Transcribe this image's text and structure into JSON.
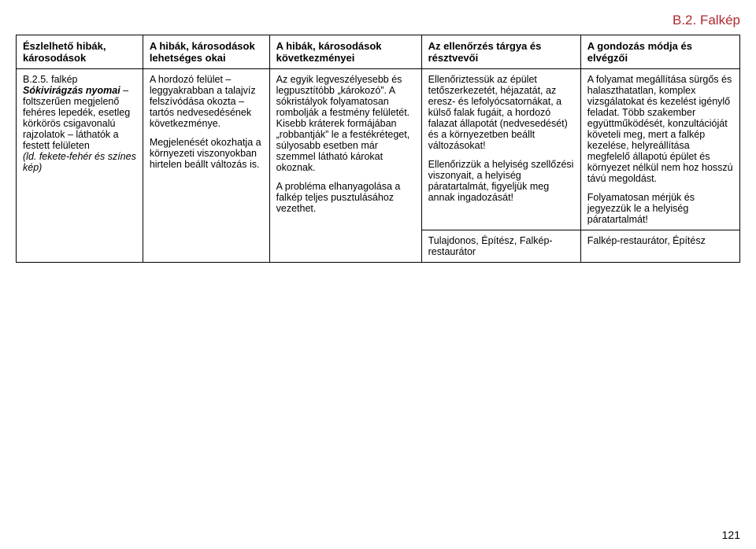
{
  "section_title": "B.2. Falkép",
  "page_number": "121",
  "headers": {
    "c1": "Észlelhető hibák, károsodások",
    "c2": "A hibák, károsodások lehetséges okai",
    "c3": "A hibák, károsodások következményei",
    "c4": "Az ellenőrzés tárgya és résztvevői",
    "c5": "A gondozás módja és elvégzői"
  },
  "row1": {
    "c1": {
      "code": "B.2.5. falkép",
      "line1_bold": "Sókivirágzás nyomai",
      "line1_rest": " – foltszerűen megjelenő fehéres lepedék, esetleg körkörös csigavonalú rajzolatok – láthatók a festett felületen",
      "paren": "(ld. fekete-fehér és színes kép)"
    },
    "c2": {
      "p1": "A hordozó felület – leggyakrabban a talajvíz felszívódása okozta – tartós nedvesedésének következménye.",
      "p2": "Megjelenését okozhatja a környezeti viszonyokban hirtelen beállt változás is."
    },
    "c3": {
      "p1": "Az egyik legveszélyesebb és legpusztítóbb „károkozó”. A sókristályok folyamatosan rombolják a festmény felületét. Kisebb kráterek formájában „robbantják” le a festékréteget, súlyosabb esetben már szemmel látható károkat okoznak.",
      "p2": "A probléma elhanyagolása a falkép teljes pusztulásához vezethet."
    },
    "c4": {
      "p1": "Ellenőriztessük az épület tetőszerkezetét, héjazatát, az eresz- és lefolyócsatornákat, a külső falak fugáit, a hordozó falazat állapotát (nedvesedését) és a környezetben beállt változásokat!",
      "p2": "Ellenőrizzük a helyiség szellőzési viszonyait, a helyiség páratartalmát, figyeljük meg annak ingadozását!"
    },
    "c5": {
      "p1": "A folyamat megállítása sürgős és halaszthatatlan, komplex vizsgálatokat és kezelést igénylő feladat. Több szakember együttműködését, konzultációját követeli meg, mert a falkép kezelése, helyreállítása megfelelő állapotú épület és környezet nélkül nem hoz hosszú távú megoldást.",
      "p2": "Folyamatosan mérjük és jegyezzük le a helyiség páratartalmát!"
    }
  },
  "row2": {
    "c4": "Tulajdonos, Építész, Falkép-restaurátor",
    "c5": "Falkép-restaurátor, Építész"
  }
}
